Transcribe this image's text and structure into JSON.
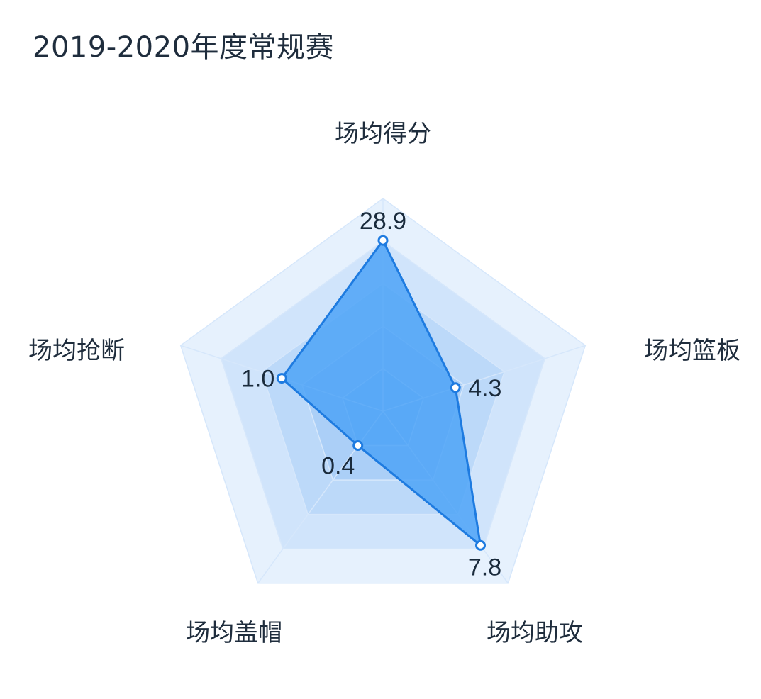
{
  "chart_data": {
    "type": "radar",
    "title": "2019-2020年度常规赛",
    "indicators": [
      {
        "name": "场均得分",
        "max": 36
      },
      {
        "name": "场均篮板",
        "max": 12
      },
      {
        "name": "场均助攻",
        "max": 10
      },
      {
        "name": "场均盖帽",
        "max": 2
      },
      {
        "name": "场均抢断",
        "max": 2
      }
    ],
    "series": [
      {
        "values": [
          28.9,
          4.3,
          7.8,
          0.4,
          1.0
        ],
        "labels": [
          "28.9",
          "4.3",
          "7.8",
          "0.4",
          "1.0"
        ]
      }
    ],
    "rings": 5,
    "colors": {
      "area": "#4da3f7",
      "line": "#1e7be0",
      "ring_fill": "#2f8cf0",
      "split_line": "#d6e7fb"
    }
  }
}
